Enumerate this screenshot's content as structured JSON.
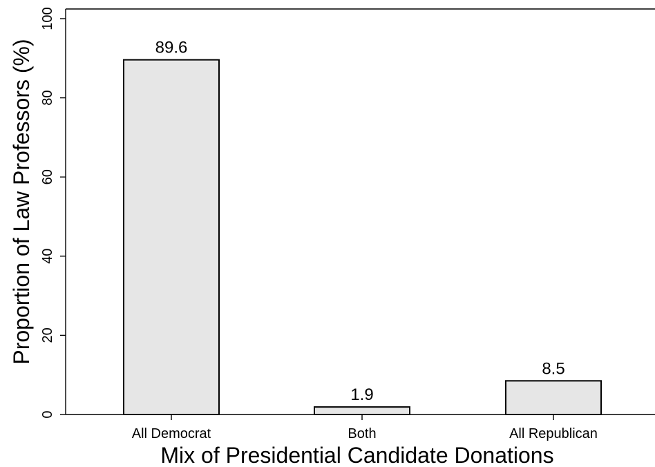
{
  "chart_data": {
    "type": "bar",
    "categories": [
      "All Democrat",
      "Both",
      "All Republican"
    ],
    "values": [
      89.6,
      1.9,
      8.5
    ],
    "data_labels": [
      "89.6",
      "1.9",
      "8.5"
    ],
    "title": "",
    "xlabel": "Mix of Presidential Candidate Donations",
    "ylabel": "Proportion of Law Professors (%)",
    "ylim": [
      0,
      100
    ],
    "yticks": [
      0,
      20,
      40,
      60,
      80,
      100
    ],
    "ytick_labels": [
      "0",
      "20",
      "40",
      "60",
      "80",
      "100"
    ],
    "grid": false,
    "legend": "none",
    "colors": {
      "bar_fill": "#e6e6e6",
      "bar_edge": "#000000",
      "axis": "#000000",
      "text": "#000000",
      "background": "#ffffff"
    }
  }
}
